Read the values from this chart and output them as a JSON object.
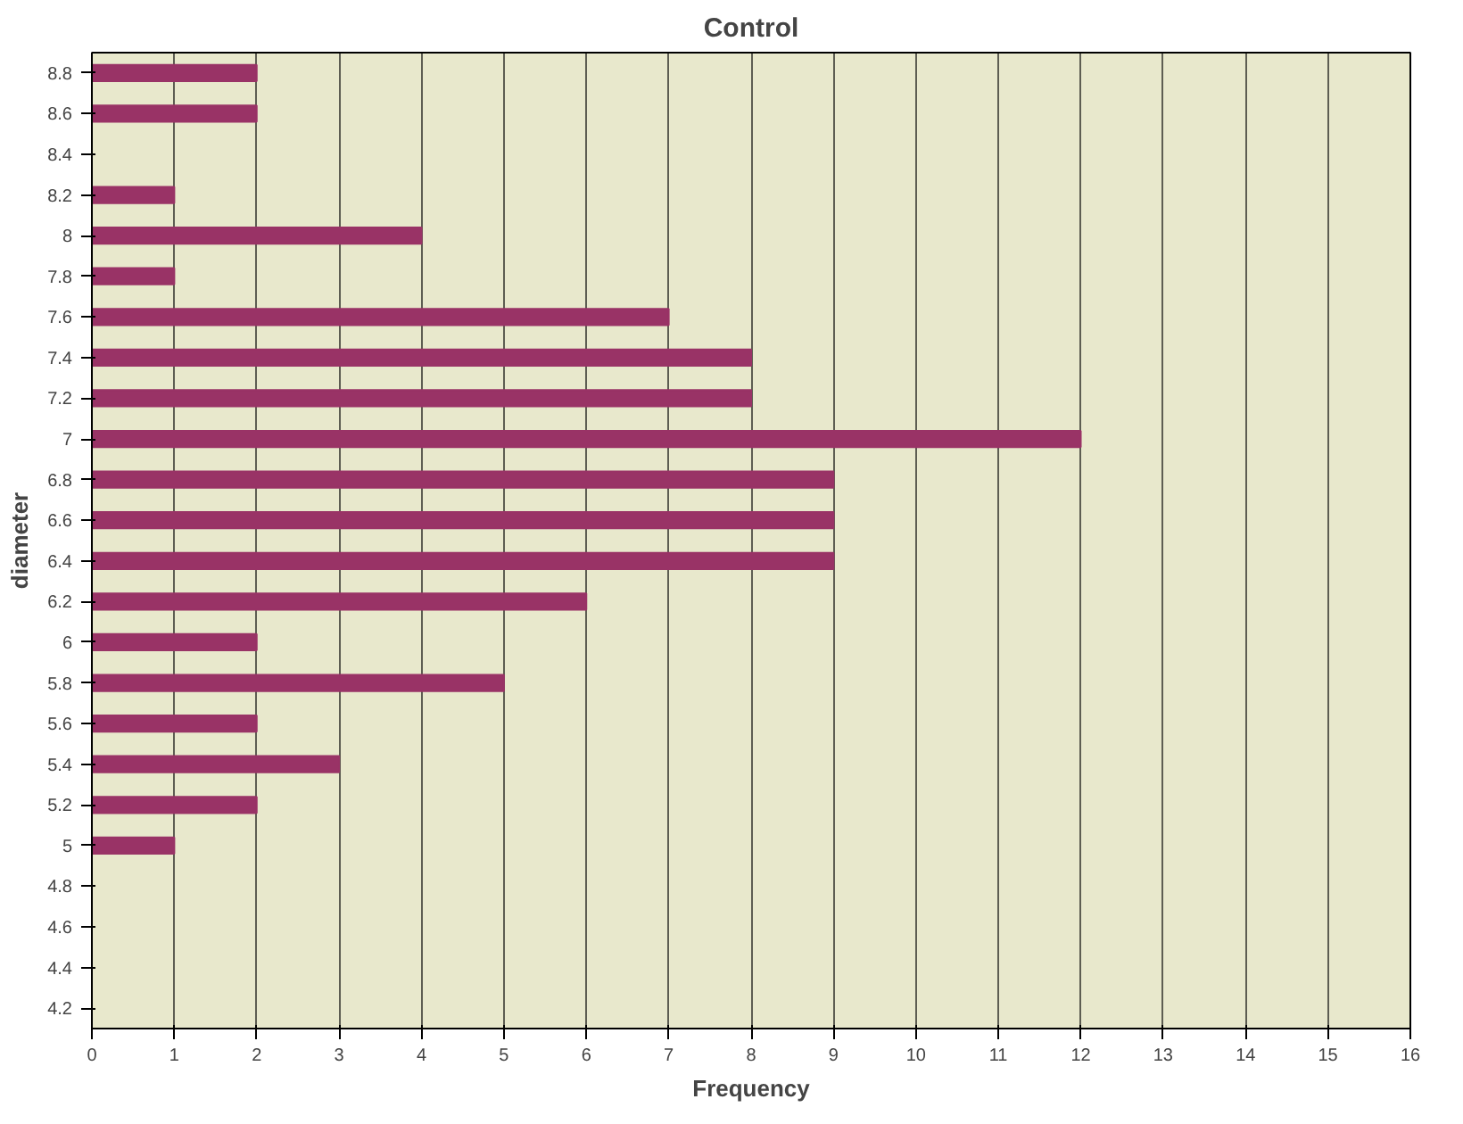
{
  "chart_data": {
    "type": "bar",
    "orientation": "horizontal",
    "title": "Control",
    "xlabel": "Frequency",
    "ylabel": "diameter",
    "categories": [
      "8.8",
      "8.6",
      "8.4",
      "8.2",
      "8",
      "7.8",
      "7.6",
      "7.4",
      "7.2",
      "7",
      "6.8",
      "6.6",
      "6.4",
      "6.2",
      "6",
      "5.8",
      "5.6",
      "5.4",
      "5.2",
      "5",
      "4.8",
      "4.6",
      "4.4",
      "4.2"
    ],
    "values": [
      2,
      2,
      0,
      1,
      4,
      1,
      7,
      8,
      8,
      12,
      9,
      9,
      9,
      6,
      2,
      5,
      2,
      3,
      2,
      1,
      0,
      0,
      0,
      0
    ],
    "color": "#993366",
    "xlim": [
      0,
      16
    ],
    "xticks": [
      0,
      1,
      2,
      3,
      4,
      5,
      6,
      7,
      8,
      9,
      10,
      11,
      12,
      13,
      14,
      15,
      16
    ],
    "grid": "x"
  }
}
